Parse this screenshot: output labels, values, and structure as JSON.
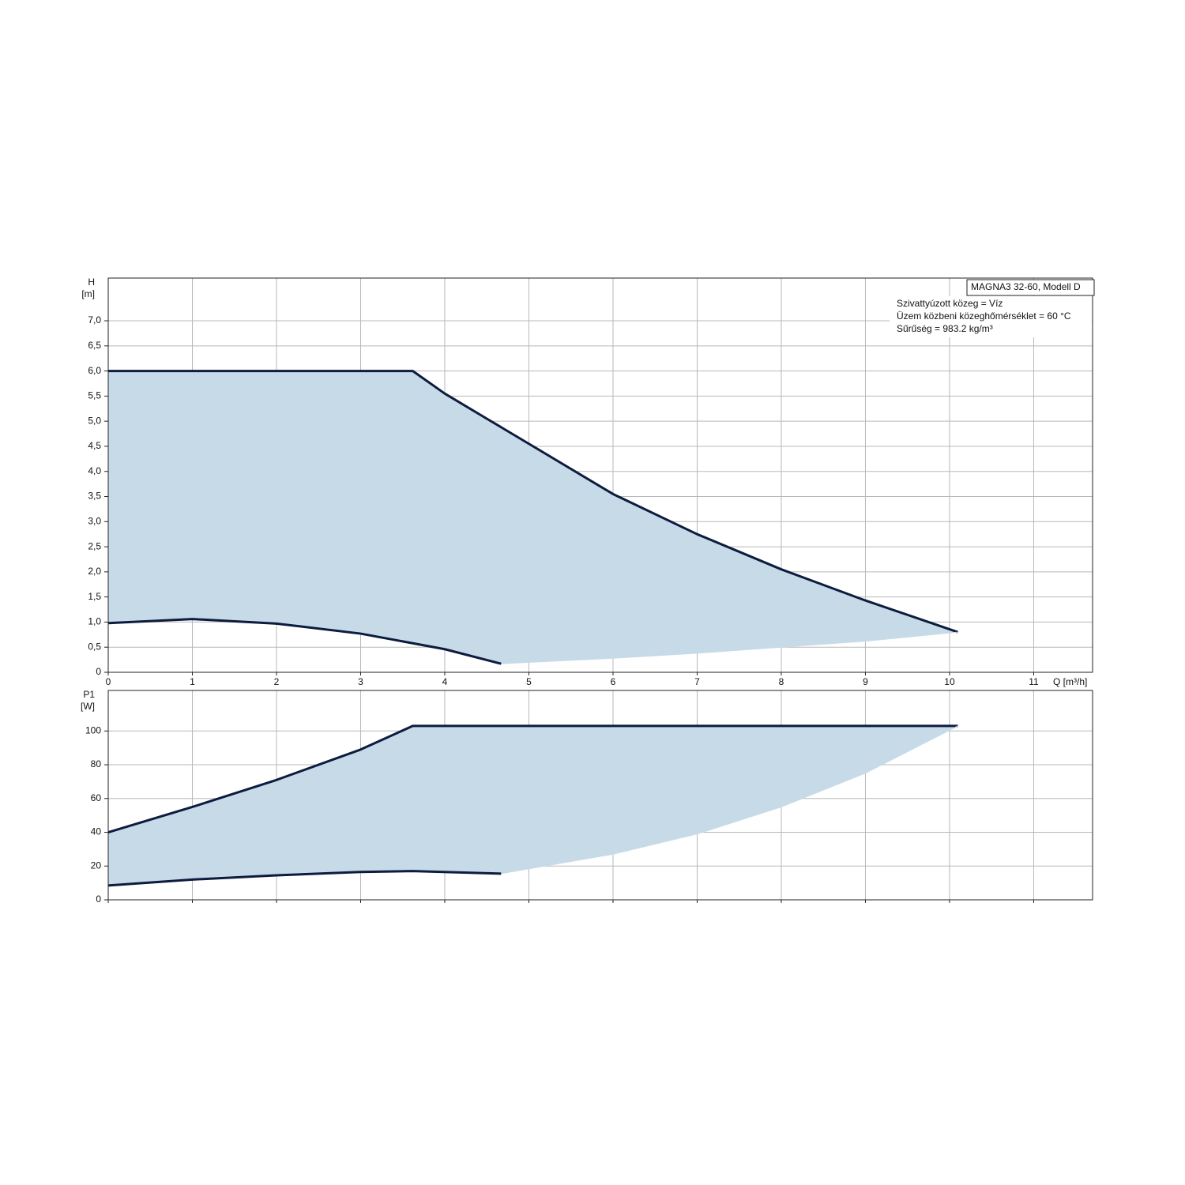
{
  "chart_data": [
    {
      "type": "area",
      "ylabel": [
        "H",
        "[m]"
      ],
      "xlabel": "Q [m³/h]",
      "legend_title": "MAGNA3 32-60, Modell D",
      "notes": [
        "Szivattyúzott közeg = Víz",
        "Üzem közbeni közeghőmérséklet = 60 °C",
        "Sűrűség = 983.2 kg/m³"
      ],
      "xlim": [
        0,
        11.7
      ],
      "xticks": [
        0,
        1,
        2,
        3,
        4,
        5,
        6,
        7,
        8,
        9,
        10,
        11
      ],
      "xtick_labels": true,
      "ylim": [
        0,
        7.85
      ],
      "yticks": [
        0,
        {
          "value": 0.5,
          "label": "0,5"
        },
        {
          "value": 1,
          "label": "1,0"
        },
        {
          "value": 1.5,
          "label": "1,5"
        },
        {
          "value": 2,
          "label": "2,0"
        },
        {
          "value": 2.5,
          "label": "2,5"
        },
        {
          "value": 3,
          "label": "3,0"
        },
        {
          "value": 3.5,
          "label": "3,5"
        },
        {
          "value": 4,
          "label": "4,0"
        },
        {
          "value": 4.5,
          "label": "4,5"
        },
        {
          "value": 5,
          "label": "5,0"
        },
        {
          "value": 5.5,
          "label": "5,5"
        },
        {
          "value": 6,
          "label": "6,0"
        },
        {
          "value": 6.5,
          "label": "6,5"
        },
        {
          "value": 7,
          "label": "7,0"
        }
      ],
      "grid": true,
      "fill_color": "#c7dae8",
      "series": [
        {
          "color": "#0d1b3e",
          "line": true,
          "x": [
            0,
            3.62,
            4,
            4.5,
            5,
            6,
            7,
            8,
            9,
            10.1
          ],
          "values": [
            6,
            6,
            5.55,
            5.05,
            4.55,
            3.55,
            2.75,
            2.05,
            1.43,
            0.8
          ]
        },
        {
          "color": "#0d1b3e",
          "line": true,
          "x": [
            0,
            1,
            2,
            3,
            4,
            4.67
          ],
          "values": [
            0.98,
            1.06,
            0.97,
            0.77,
            0.46,
            0.17
          ]
        },
        {
          "color": "#c7dae8",
          "line": false,
          "x": [
            4.67,
            6,
            7,
            8,
            9,
            10.1
          ],
          "values": [
            0.17,
            0.28,
            0.38,
            0.5,
            0.62,
            0.8
          ]
        }
      ]
    },
    {
      "type": "area",
      "ylabel": [
        "P1",
        "[W]"
      ],
      "xlim": [
        0,
        11.7
      ],
      "xticks": [
        0,
        1,
        2,
        3,
        4,
        5,
        6,
        7,
        8,
        9,
        10,
        11
      ],
      "xtick_labels": false,
      "ylim": [
        0,
        124
      ],
      "yticks": [
        0,
        20,
        40,
        60,
        80,
        100
      ],
      "grid": true,
      "fill_color": "#c7dae8",
      "series": [
        {
          "color": "#0d1b3e",
          "line": true,
          "x": [
            0,
            1,
            2,
            3,
            3.62,
            10.1
          ],
          "values": [
            40,
            55,
            71,
            89,
            103,
            103
          ]
        },
        {
          "color": "#0d1b3e",
          "line": true,
          "x": [
            0,
            1,
            2,
            3,
            3.62,
            4.67
          ],
          "values": [
            8.5,
            12,
            14.5,
            16.5,
            17,
            15.5
          ]
        },
        {
          "color": "#c7dae8",
          "line": false,
          "x": [
            4.67,
            6,
            7,
            8,
            9,
            10.1
          ],
          "values": [
            15.5,
            27,
            39,
            55,
            75,
            103
          ]
        }
      ]
    }
  ]
}
